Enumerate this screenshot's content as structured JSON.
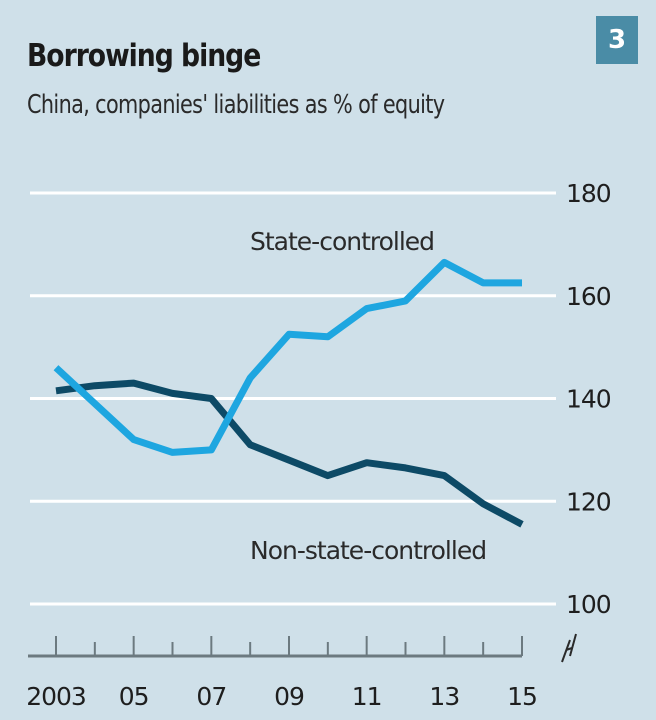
{
  "chart_data": {
    "type": "line",
    "title": "Borrowing binge",
    "subtitle": "China, companies' liabilities as % of equity",
    "badge": "3",
    "xlabel": "",
    "ylabel": "",
    "x": [
      2003,
      2004,
      2005,
      2006,
      2007,
      2008,
      2009,
      2010,
      2011,
      2012,
      2013,
      2014,
      2015
    ],
    "x_tick_labels": [
      {
        "value": 2003,
        "label": "2003"
      },
      {
        "value": 2005,
        "label": "05"
      },
      {
        "value": 2007,
        "label": "07"
      },
      {
        "value": 2009,
        "label": "09"
      },
      {
        "value": 2011,
        "label": "11"
      },
      {
        "value": 2013,
        "label": "13"
      },
      {
        "value": 2015,
        "label": "15"
      }
    ],
    "y_ticks": [
      100,
      120,
      140,
      160,
      180
    ],
    "ylim": [
      100,
      180
    ],
    "xlim": [
      2003,
      2015
    ],
    "y_axis_side": "right",
    "y_axis_break": true,
    "grid": true,
    "series": [
      {
        "name": "State-controlled",
        "color": "#1ea6e0",
        "values": [
          146,
          139,
          132,
          129.5,
          130,
          144,
          152.5,
          152,
          157.5,
          159,
          166.5,
          162.5,
          162.5
        ]
      },
      {
        "name": "Non-state-controlled",
        "color": "#0d4a66",
        "values": [
          141.5,
          142.5,
          143,
          141,
          140,
          131,
          128,
          125,
          127.5,
          126.5,
          125,
          119.5,
          115.5
        ]
      }
    ],
    "annotations": [
      {
        "text": "State-controlled",
        "series": "State-controlled",
        "position": "above line, near 2008-2012"
      },
      {
        "text": "Non-state-controlled",
        "series": "Non-state-controlled",
        "position": "below line, near 2008-2015"
      }
    ]
  },
  "colors": {
    "background": "#cfe0e9",
    "gridline": "#ffffff",
    "axis": "#6c7a80",
    "badge": "#4a8ca6"
  }
}
